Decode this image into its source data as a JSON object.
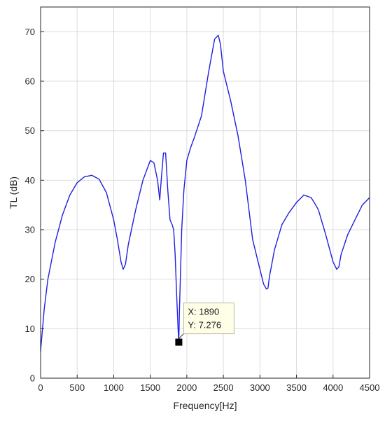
{
  "chart_data": {
    "type": "line",
    "title": "",
    "xlabel": "Frequency[Hz]",
    "ylabel": "TL (dB)",
    "xlim": [
      0,
      4500
    ],
    "ylim": [
      0,
      75
    ],
    "xticks": [
      0,
      500,
      1000,
      1500,
      2000,
      2500,
      3000,
      3500,
      4000,
      4500
    ],
    "yticks": [
      0,
      10,
      20,
      30,
      40,
      50,
      60,
      70
    ],
    "grid": true,
    "legend": "none",
    "line_color": "#1f1fe0",
    "series": [
      {
        "x": [
          0,
          50,
          100,
          200,
          300,
          400,
          500,
          600,
          700,
          800,
          900,
          1000,
          1050,
          1100,
          1130,
          1160,
          1200,
          1300,
          1400,
          1500,
          1550,
          1600,
          1630,
          1650,
          1680,
          1710,
          1740,
          1770,
          1800,
          1820,
          1840,
          1860,
          1880,
          1890,
          1900,
          1930,
          1960,
          2000,
          2050,
          2100,
          2200,
          2300,
          2380,
          2430,
          2460,
          2500,
          2600,
          2700,
          2800,
          2900,
          3000,
          3050,
          3090,
          3110,
          3130,
          3200,
          3300,
          3400,
          3500,
          3600,
          3700,
          3750,
          3800,
          3900,
          4000,
          4050,
          4080,
          4110,
          4200,
          4300,
          4400,
          4500
        ],
        "y": [
          5.5,
          14,
          20,
          27.5,
          33,
          37,
          39.5,
          40.7,
          41,
          40.2,
          37.5,
          32,
          28,
          23.5,
          22,
          23,
          27,
          34,
          40,
          44,
          43.5,
          40,
          36,
          40,
          45.5,
          45.5,
          38,
          32,
          31,
          30,
          25,
          17,
          10,
          7.3,
          14,
          30,
          38,
          44,
          46.5,
          48.5,
          53,
          62,
          68.5,
          69.3,
          67.5,
          62,
          56,
          49,
          40,
          28,
          22,
          19,
          18,
          18.2,
          20.5,
          26,
          31,
          33.5,
          35.5,
          37,
          36.5,
          35.3,
          34,
          29,
          23.5,
          22,
          22.5,
          25,
          29,
          32,
          35,
          36.5
        ]
      }
    ],
    "datatip": {
      "x_text": "X: 1890",
      "y_text": "Y: 7.276",
      "x": 1890,
      "y": 7.276
    }
  }
}
